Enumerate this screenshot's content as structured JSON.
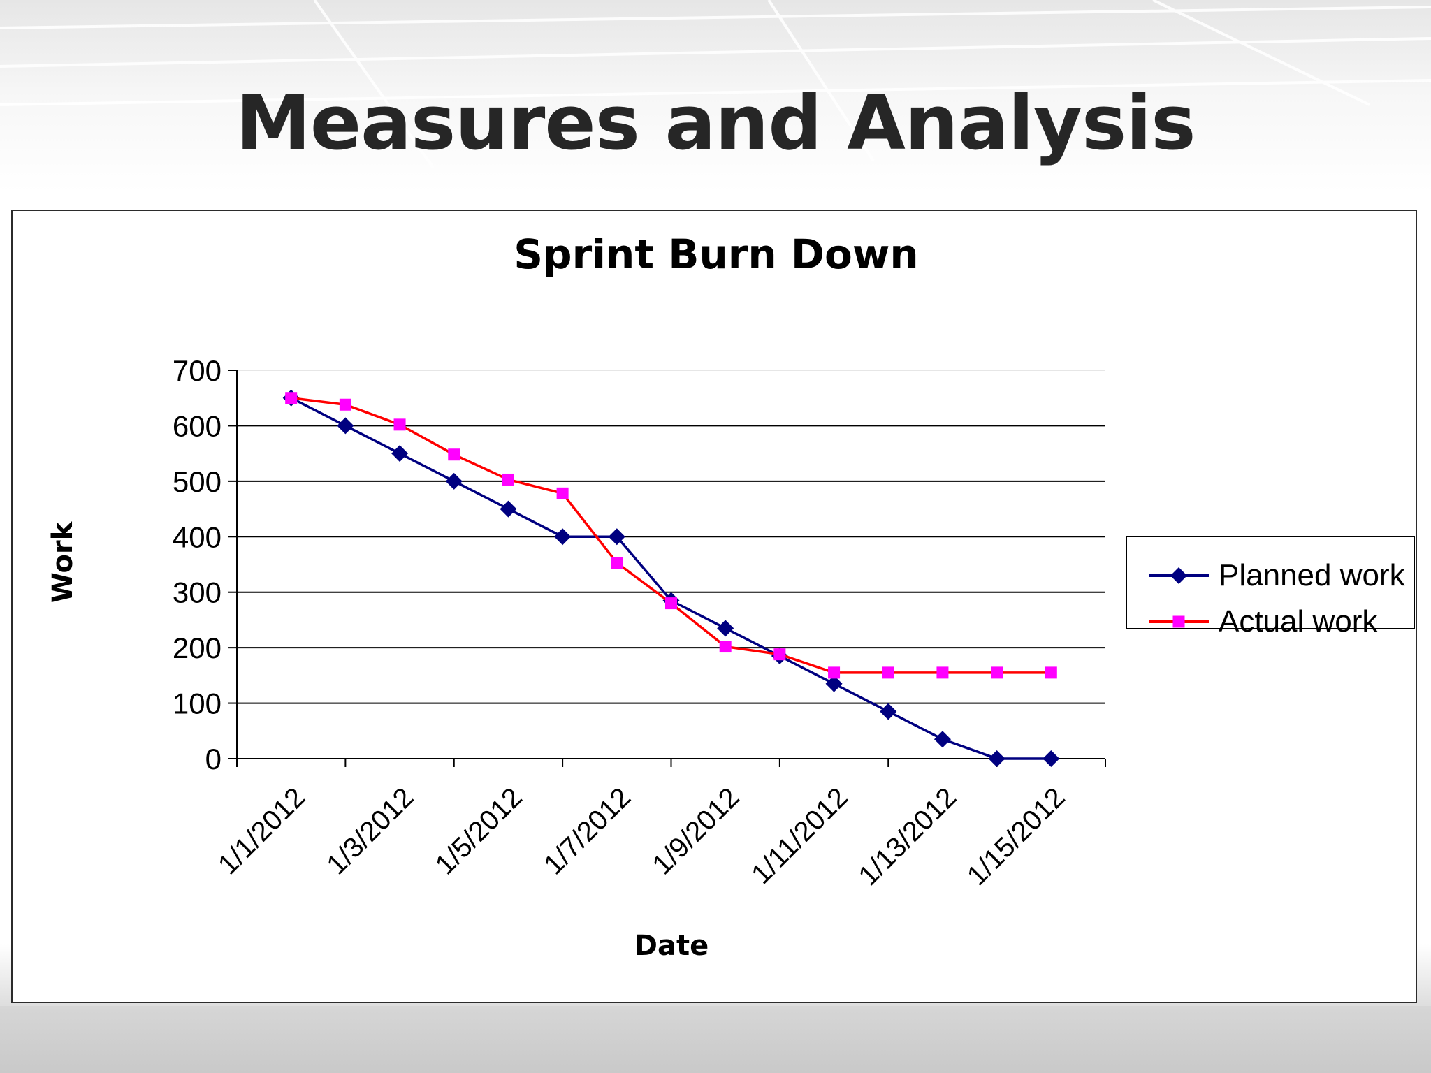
{
  "slide": {
    "title": "Measures and Analysis"
  },
  "colors": {
    "planned": "#000080",
    "actual_line": "#ff0000",
    "actual_marker": "#ff00ff",
    "grid": "#000000"
  },
  "chart_data": {
    "type": "line",
    "title": "Sprint Burn Down",
    "xlabel": "Date",
    "ylabel": "Work",
    "ylim": [
      0,
      700
    ],
    "yticks": [
      0,
      100,
      200,
      300,
      400,
      500,
      600,
      700
    ],
    "xlim": [
      "12/31/2011",
      "1/16/2012"
    ],
    "xtick_labels": [
      "1/1/2012",
      "1/3/2012",
      "1/5/2012",
      "1/7/2012",
      "1/9/2012",
      "1/11/2012",
      "1/13/2012",
      "1/15/2012"
    ],
    "grid": true,
    "legend": "right",
    "x": [
      "1/1/2012",
      "1/2/2012",
      "1/3/2012",
      "1/4/2012",
      "1/5/2012",
      "1/6/2012",
      "1/7/2012",
      "1/8/2012",
      "1/9/2012",
      "1/10/2012",
      "1/11/2012",
      "1/12/2012",
      "1/13/2012",
      "1/14/2012",
      "1/15/2012"
    ],
    "series": [
      {
        "name": "Planned work",
        "values": [
          650,
          600,
          550,
          500,
          450,
          400,
          400,
          285,
          235,
          185,
          135,
          85,
          35,
          0,
          0
        ]
      },
      {
        "name": "Actual work",
        "values": [
          650,
          638,
          602,
          548,
          503,
          478,
          353,
          280,
          202,
          188,
          155,
          155,
          155,
          155,
          155
        ]
      }
    ]
  }
}
